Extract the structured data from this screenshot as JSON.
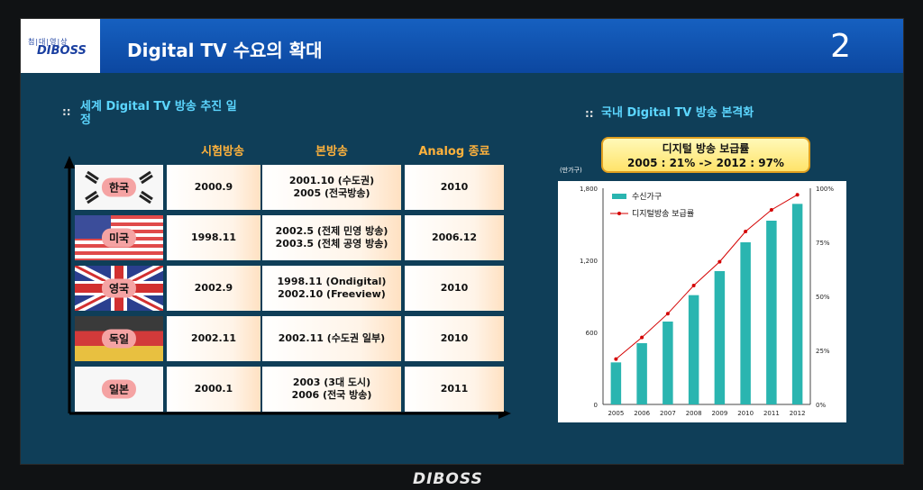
{
  "header": {
    "logo_small": "첨|대|영|상",
    "logo_main": "DIBOSS",
    "title": "Digital TV 수요의 확대",
    "page_number": "2"
  },
  "left": {
    "bullet": "::",
    "section_title_line1": "세계  Digital TV 방송 추진 일",
    "section_title_line2": "정",
    "columns": [
      "시험방송",
      "본방송",
      "Analog 종료"
    ],
    "rows": [
      {
        "country": "한국",
        "trial": "2000.9",
        "main_line1": "2001.10 (수도권)",
        "main_line2": "2005 (전국방송)",
        "analog_end": "2010"
      },
      {
        "country": "미국",
        "trial": "1998.11",
        "main_line1": "2002.5 (전제 민영 방송)",
        "main_line2": "2003.5 (전체 공영 방송)",
        "analog_end": "2006.12"
      },
      {
        "country": "영국",
        "trial": "2002.9",
        "main_line1": "1998.11 (Ondigital)",
        "main_line2": "2002.10 (Freeview)",
        "analog_end": "2010"
      },
      {
        "country": "독일",
        "trial": "2002.11",
        "main_line1": "2002.11 (수도권 일부)",
        "main_line2": "",
        "analog_end": "2010"
      },
      {
        "country": "일본",
        "trial": "2000.1",
        "main_line1": "2003 (3대 도시)",
        "main_line2": "2006 (전국 방송)",
        "analog_end": "2011"
      }
    ]
  },
  "right": {
    "bullet": "::",
    "section_title": "국내 Digital TV 방송 본격화",
    "callout_line1": "디지털 방송 보급률",
    "callout_line2": "2005 : 21%  ->  2012 : 97%"
  },
  "chart_data": {
    "type": "bar",
    "unit_label": "(만가구)",
    "categories": [
      "2005",
      "2006",
      "2007",
      "2008",
      "2009",
      "2010",
      "2011",
      "2012"
    ],
    "series": [
      {
        "name": "수신가구",
        "type": "bar",
        "axis": "left",
        "values": [
          350,
          510,
          690,
          910,
          1110,
          1350,
          1530,
          1670
        ]
      },
      {
        "name": "디지털방송 보급률",
        "type": "line",
        "axis": "right",
        "values": [
          21,
          31,
          42,
          55,
          66,
          80,
          90,
          97
        ]
      }
    ],
    "y_left": {
      "min": 0,
      "max": 1800,
      "ticks": [
        0,
        600,
        1200,
        1800
      ],
      "tick_labels": [
        "0",
        "600",
        "1,200",
        "1,800"
      ]
    },
    "y_right": {
      "min": 0,
      "max": 100,
      "ticks": [
        0,
        25,
        50,
        75,
        100
      ],
      "tick_labels": [
        "0%",
        "25%",
        "50%",
        "75%",
        "100%"
      ]
    },
    "legend_position": "top-left",
    "colors": {
      "bar": "#2ab5b0",
      "line": "#d40000"
    }
  },
  "footer": {
    "logo": "DIBOSS"
  }
}
